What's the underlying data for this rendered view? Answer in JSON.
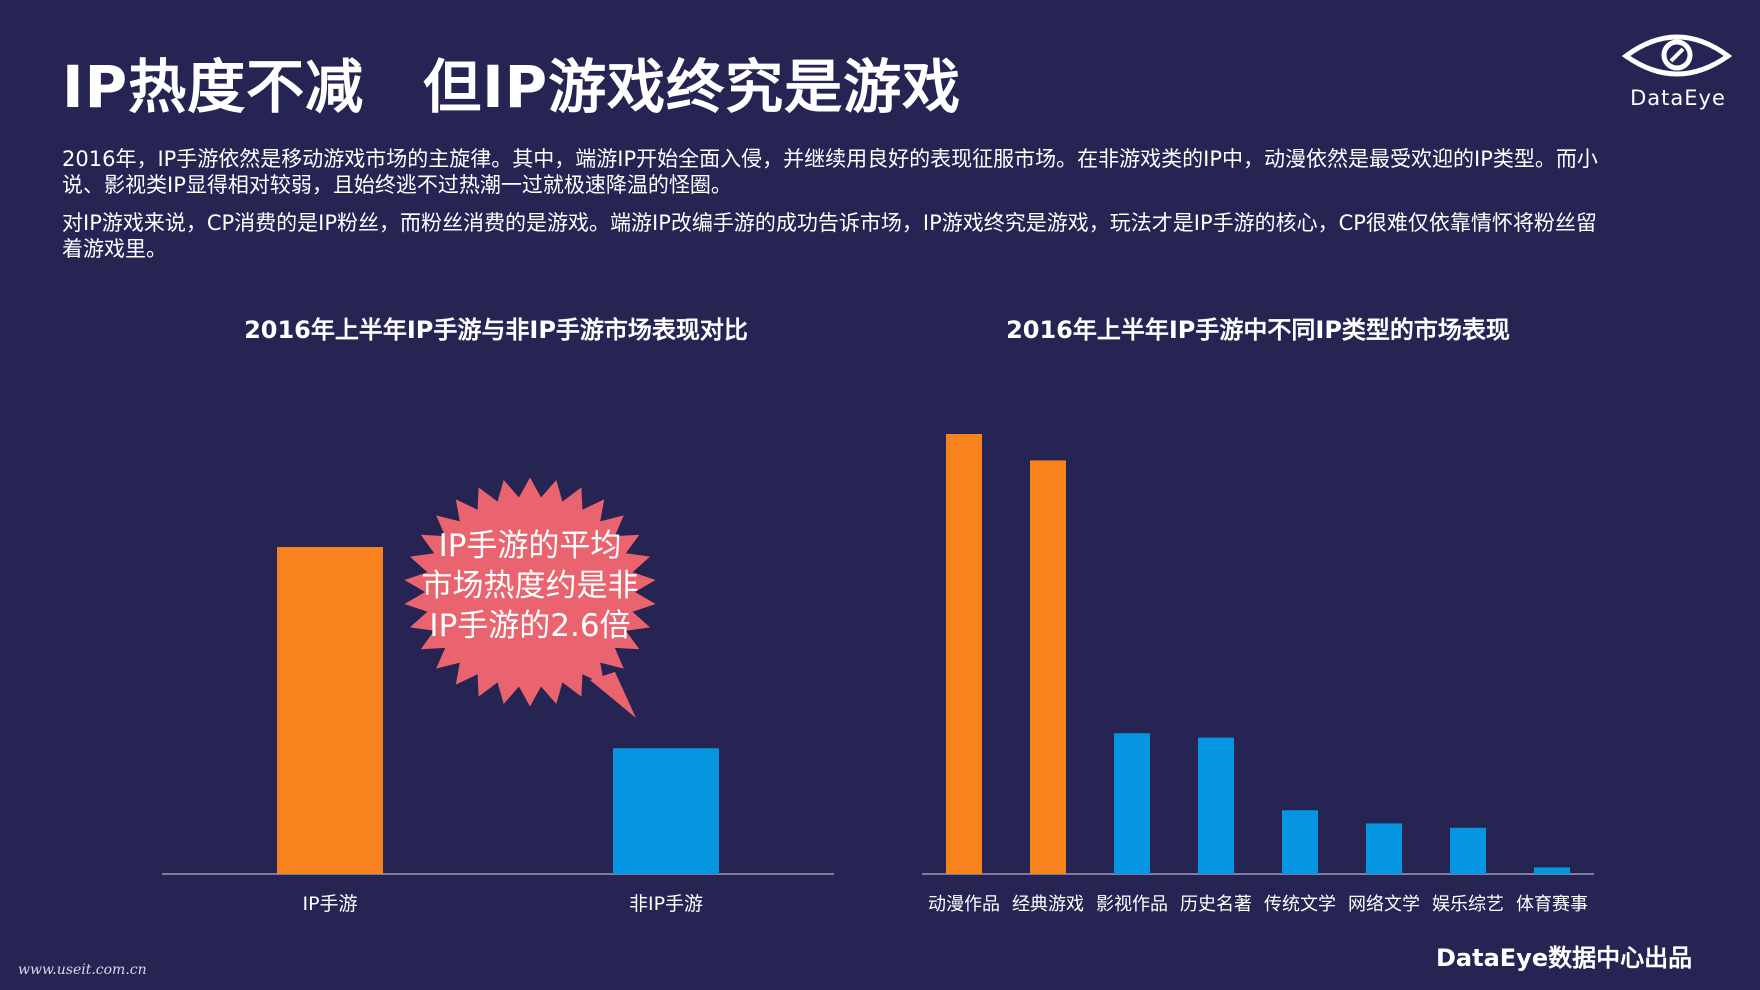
{
  "header": {
    "title": "IP热度不减　但IP游戏终究是游戏",
    "logo_text": "DataEye",
    "logo_icon": "eye-icon"
  },
  "paragraphs": [
    "2016年，IP手游依然是移动游戏市场的主旋律。其中，端游IP开始全面入侵，并继续用良好的表现征服市场。在非游戏类的IP中，动漫依然是最受欢迎的IP类型。而小说、影视类IP显得相对较弱，且始终逃不过热潮一过就极速降温的怪圈。",
    "对IP游戏来说，CP消费的是IP粉丝，而粉丝消费的是游戏。端游IP改编手游的成功告诉市场，IP游戏终究是游戏，玩法才是IP手游的核心，CP很难仅依靠情怀将粉丝留着游戏里。"
  ],
  "chart_data": [
    {
      "type": "bar",
      "title": "2016年上半年IP手游与非IP手游市场表现对比",
      "categories": [
        "IP手游",
        "非IP手游"
      ],
      "values": [
        2.6,
        1.0
      ],
      "colors": [
        "#F8821E",
        "#0496E0"
      ],
      "ylim": [
        0,
        3.3
      ],
      "annotation": "IP手游的平均市场热度约是非IP手游的2.6倍"
    },
    {
      "type": "bar",
      "title": "2016年上半年IP手游中不同IP类型的市场表现",
      "categories": [
        "动漫作品",
        "经典游戏",
        "影视作品",
        "历史名著",
        "传统文学",
        "网络文学",
        "娱乐综艺",
        "体育赛事"
      ],
      "values": [
        100,
        94,
        32,
        31,
        14.5,
        11.5,
        10.5,
        1.5
      ],
      "colors": [
        "#F8821E",
        "#F8821E",
        "#0496E0",
        "#0496E0",
        "#0496E0",
        "#0496E0",
        "#0496E0",
        "#0496E0"
      ],
      "ylim": [
        0,
        100
      ]
    }
  ],
  "footer": {
    "credit": "DataEye数据中心出品",
    "url": "www.useit.com.cn"
  },
  "colors": {
    "background": "#252453",
    "orange": "#F8821E",
    "blue": "#0496E0",
    "callout": "#E9646F",
    "axis": "#9A9AB8"
  }
}
